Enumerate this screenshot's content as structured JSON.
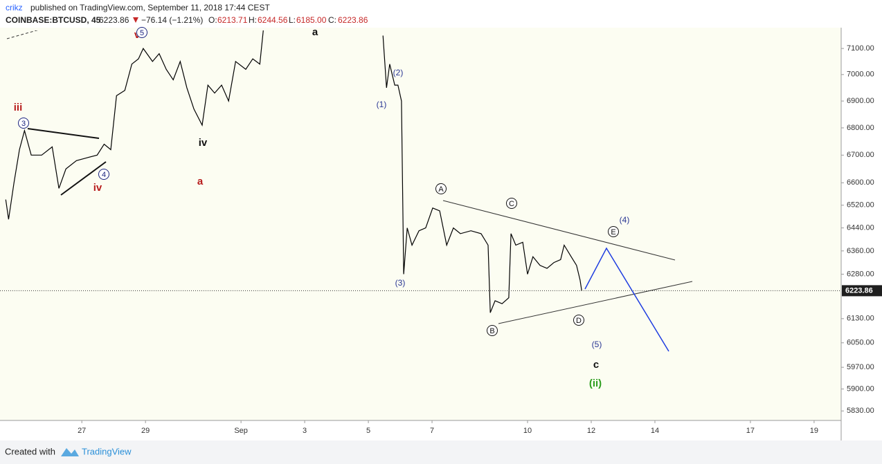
{
  "header": {
    "publisher": "crikz",
    "published": "published on TradingView.com, September 11, 2018 17:44 CEST",
    "symbol": "COINBASE:BTCUSD, 45",
    "price": "6223.86",
    "change": "−76.14 (−1.21%)",
    "open_label": "O:",
    "open": "6213.71",
    "high_label": "H:",
    "high": "6244.56",
    "low_label": "L:",
    "low": "6185.00",
    "close_label": "C:",
    "close": "6223.86"
  },
  "footer": {
    "created": "Created with",
    "brand": "TradingView"
  },
  "chart_data": {
    "type": "line",
    "log_scale": true,
    "color": "#000000",
    "xlim": [
      -2.57,
      23.85
    ],
    "ylim": [
      5800,
      7170
    ],
    "xticks": [
      {
        "value": 0,
        "label": "27"
      },
      {
        "value": 2,
        "label": "29"
      },
      {
        "value": 5,
        "label": "Sep"
      },
      {
        "value": 7,
        "label": "3"
      },
      {
        "value": 9,
        "label": "5"
      },
      {
        "value": 11,
        "label": "7"
      },
      {
        "value": 14,
        "label": "10"
      },
      {
        "value": 16,
        "label": "12"
      },
      {
        "value": 18,
        "label": "14"
      },
      {
        "value": 21,
        "label": "17"
      },
      {
        "value": 23,
        "label": "19"
      }
    ],
    "yticks": [
      {
        "value": 7100,
        "label": "7100.00"
      },
      {
        "value": 7000,
        "label": "7000.00"
      },
      {
        "value": 6900,
        "label": "6900.00"
      },
      {
        "value": 6800,
        "label": "6800.00"
      },
      {
        "value": 6700,
        "label": "6700.00"
      },
      {
        "value": 6600,
        "label": "6600.00"
      },
      {
        "value": 6520,
        "label": "6520.00"
      },
      {
        "value": 6440,
        "label": "6440.00"
      },
      {
        "value": 6360,
        "label": "6360.00"
      },
      {
        "value": 6280,
        "label": "6280.00"
      },
      {
        "value": 6130,
        "label": "6130.00"
      },
      {
        "value": 6050,
        "label": "6050.00"
      },
      {
        "value": 5970,
        "label": "5970.00"
      },
      {
        "value": 5900,
        "label": "5900.00"
      },
      {
        "value": 5830,
        "label": "5830.00"
      }
    ],
    "last_price": 6223.86,
    "x": [
      -2.39,
      -2.3,
      -2.13,
      -1.96,
      -1.8,
      -1.59,
      -1.26,
      -0.93,
      -0.72,
      -0.5,
      -0.17,
      0.15,
      0.48,
      0.7,
      0.91,
      1.09,
      1.35,
      1.57,
      1.78,
      1.93,
      2.22,
      2.43,
      2.65,
      2.87,
      3.09,
      3.3,
      3.52,
      3.78,
      3.96,
      4.17,
      4.39,
      4.61,
      4.83,
      5.15,
      5.37,
      5.59,
      5.7,
      7.65,
      9.46,
      9.57,
      9.67,
      9.83,
      9.93,
      10.04,
      10.11,
      10.22,
      10.37,
      10.59,
      10.8,
      11.02,
      11.24,
      11.46,
      11.67,
      11.89,
      12.22,
      12.54,
      12.76,
      12.83,
      12.98,
      13.2,
      13.41,
      13.48,
      13.63,
      13.85,
      14.0,
      14.17,
      14.39,
      14.61,
      14.83,
      15.04,
      15.15,
      15.37,
      15.54,
      15.65,
      15.7
    ],
    "values": [
      6540,
      6470,
      6600,
      6720,
      6790,
      6700,
      6700,
      6730,
      6580,
      6650,
      6680,
      6690,
      6700,
      6740,
      6720,
      6920,
      6940,
      7040,
      7060,
      7100,
      7050,
      7080,
      7020,
      6980,
      7050,
      6950,
      6870,
      6810,
      6960,
      6930,
      6960,
      6900,
      7050,
      7020,
      7060,
      7040,
      7170,
      null,
      7150,
      6950,
      7040,
      6960,
      6960,
      6900,
      6280,
      6440,
      6380,
      6430,
      6440,
      6510,
      6500,
      6380,
      6440,
      6420,
      6430,
      6420,
      6380,
      6150,
      6190,
      6180,
      6200,
      6420,
      6380,
      6390,
      6280,
      6340,
      6310,
      6300,
      6320,
      6330,
      6380,
      6340,
      6310,
      6260,
      6223.86
    ],
    "annotations": [
      {
        "text": "iii",
        "color": "#b71c1c",
        "circled": false
      },
      {
        "text": "3",
        "color": "#1a237e",
        "circled": true
      },
      {
        "text": "4",
        "color": "#1a237e",
        "circled": true
      },
      {
        "text": "iv",
        "color": "#b71c1c",
        "circled": false
      },
      {
        "text": "v",
        "color": "#b71c1c",
        "circled": false
      },
      {
        "text": "5",
        "color": "#1a237e",
        "circled": true
      },
      {
        "text": "iv",
        "color": "#111111",
        "circled": false
      },
      {
        "text": "a",
        "color": "#b71c1c",
        "circled": false
      },
      {
        "text": "a",
        "color": "#111111",
        "circled": false
      },
      {
        "text": "(1)",
        "color": "#283593",
        "circled": false
      },
      {
        "text": "(2)",
        "color": "#283593",
        "circled": false
      },
      {
        "text": "(3)",
        "color": "#283593",
        "circled": false
      },
      {
        "text": "A",
        "color": "#111111",
        "circled": true
      },
      {
        "text": "B",
        "color": "#111111",
        "circled": true
      },
      {
        "text": "C",
        "color": "#111111",
        "circled": true
      },
      {
        "text": "D",
        "color": "#111111",
        "circled": true
      },
      {
        "text": "E",
        "color": "#111111",
        "circled": true
      },
      {
        "text": "(4)",
        "color": "#283593",
        "circled": false
      },
      {
        "text": "(5)",
        "color": "#283593",
        "circled": false
      },
      {
        "text": "c",
        "color": "#111111",
        "circled": false
      },
      {
        "text": "(ii)",
        "color": "#2e9e1f",
        "circled": false
      }
    ]
  }
}
